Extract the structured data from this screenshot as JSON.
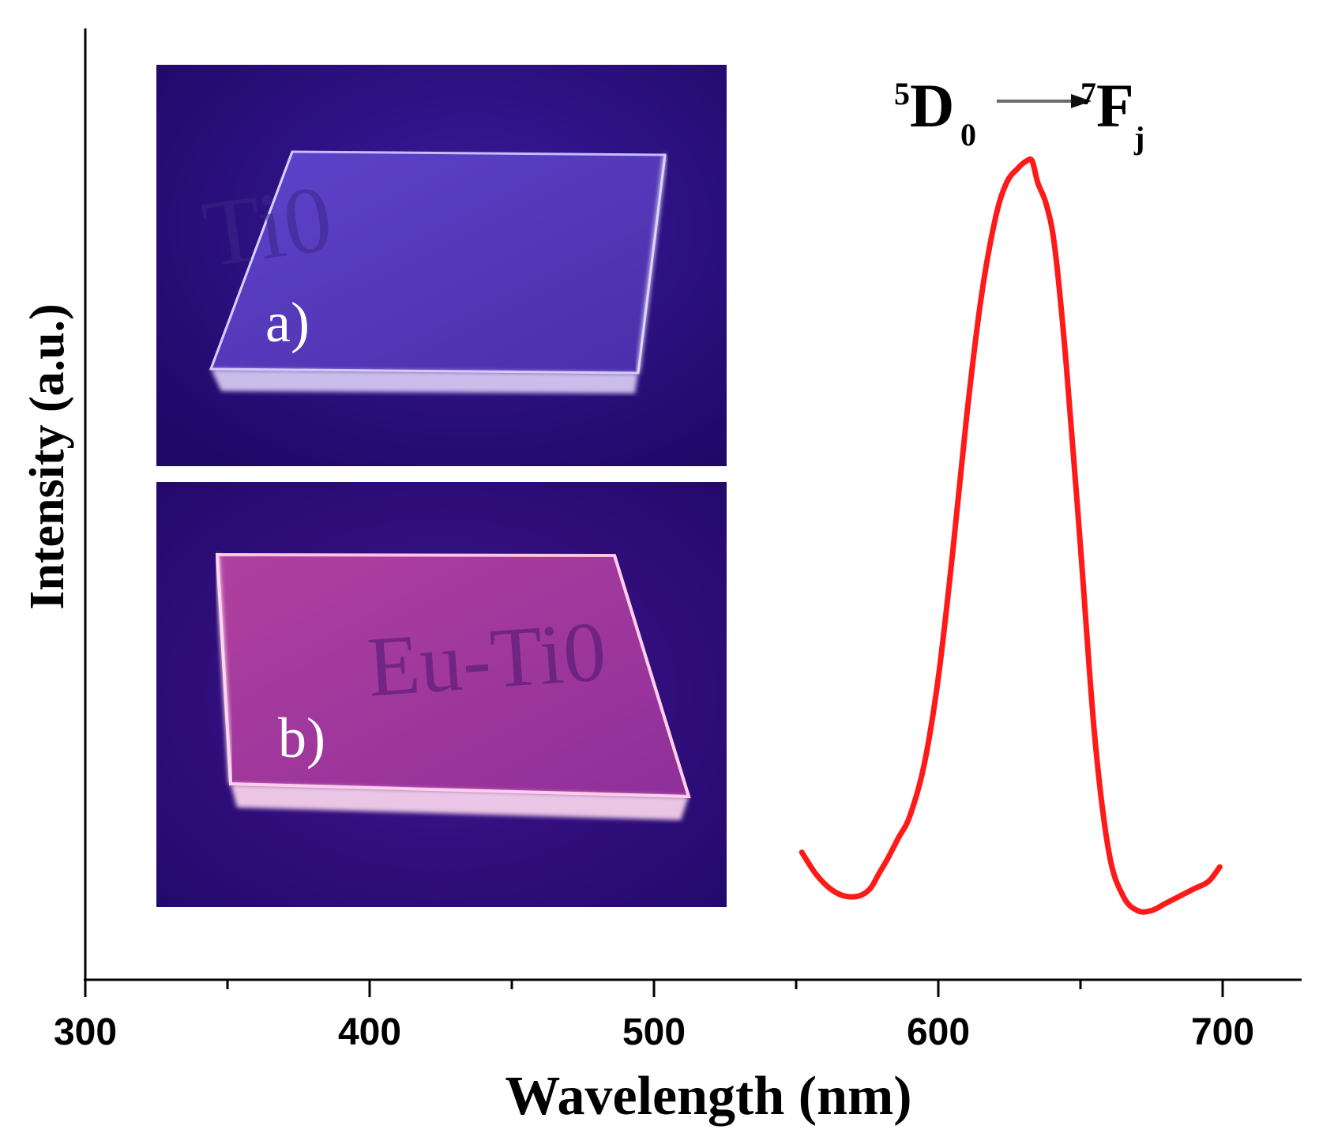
{
  "chart_data": {
    "type": "line",
    "title": "",
    "xlabel": "Wavelength (nm)",
    "ylabel": "Intensity (a.u.)",
    "xlim": [
      300,
      725
    ],
    "x_ticks": [
      300,
      400,
      500,
      600,
      700
    ],
    "x_minor_ticks": [
      350,
      450,
      550,
      650
    ],
    "y_ticks_shown": false,
    "grid": false,
    "legend": "none",
    "line_color": "#ff1a1a",
    "annotation": {
      "main_upper": "5",
      "main_letter": "D",
      "main_lower": "0",
      "target_upper": "7",
      "target_letter": "F",
      "target_lower": "j"
    },
    "series": [
      {
        "x": [
          552,
          557,
          562,
          567,
          572,
          576,
          579,
          582,
          586,
          590,
          595,
          600,
          605,
          610,
          615,
          620,
          624,
          628,
          631,
          633,
          635,
          638,
          641,
          645,
          650,
          655,
          660,
          665,
          670,
          675,
          680,
          685,
          690,
          695,
          699
        ],
        "y": [
          0.06,
          0.03,
          0.01,
          0.0,
          0.0,
          0.01,
          0.03,
          0.05,
          0.08,
          0.11,
          0.18,
          0.3,
          0.47,
          0.66,
          0.82,
          0.93,
          0.98,
          1.0,
          1.01,
          1.01,
          0.98,
          0.95,
          0.89,
          0.73,
          0.48,
          0.22,
          0.06,
          0.0,
          -0.02,
          -0.02,
          -0.01,
          0.0,
          0.01,
          0.02,
          0.04
        ]
      }
    ]
  },
  "insets": [
    {
      "label": "a)",
      "handwriting": "Ti0",
      "bg_color": "#2a0c82",
      "glass_color": "#5a3cc4",
      "edge_color": "#f0eaff"
    },
    {
      "label": "b)",
      "handwriting": "Eu-Ti0",
      "bg_color": "#30107e",
      "glass_color": "#a2399f",
      "edge_color": "#ffd6ef"
    }
  ]
}
